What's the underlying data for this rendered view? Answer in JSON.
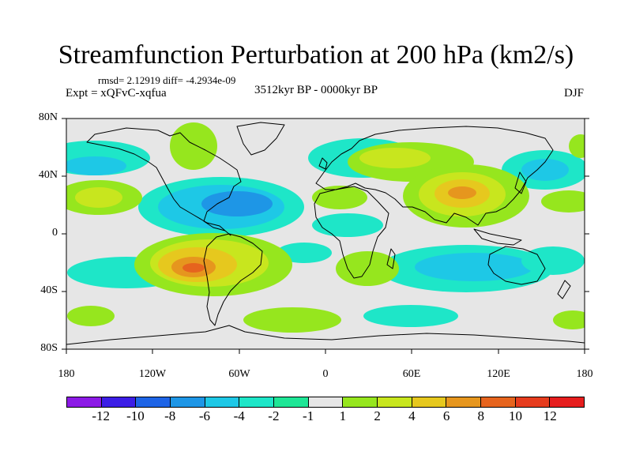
{
  "title": "Streamfunction Perturbation at 200 hPa (km2/s)",
  "stats": "rmsd= 2.12919 diff= -4.2934e-09",
  "expt": "Expt = xQFvC-xqfua",
  "period": "3512kyr BP - 0000kyr BP",
  "season": "DJF",
  "lat_labels": [
    "80N",
    "40N",
    "0",
    "40S",
    "80S"
  ],
  "lon_labels": [
    "180",
    "120W",
    "60W",
    "0",
    "60E",
    "120E",
    "180"
  ],
  "colorbar": {
    "colors": [
      "#8c1ae6",
      "#3c1ee6",
      "#1e64e6",
      "#1e96e6",
      "#1ec8e6",
      "#1ee6c8",
      "#1ee696",
      "#e6e6e6",
      "#96e61e",
      "#c8e61e",
      "#e6c81e",
      "#e6961e",
      "#e6641e",
      "#e63c1e",
      "#e61e1e"
    ],
    "labels": [
      "-12",
      "-10",
      "-8",
      "-6",
      "-4",
      "-2",
      "-1",
      "1",
      "2",
      "4",
      "6",
      "8",
      "10",
      "12"
    ]
  },
  "colors": {
    "background": "#e6e6e6",
    "coast": "#000000"
  }
}
